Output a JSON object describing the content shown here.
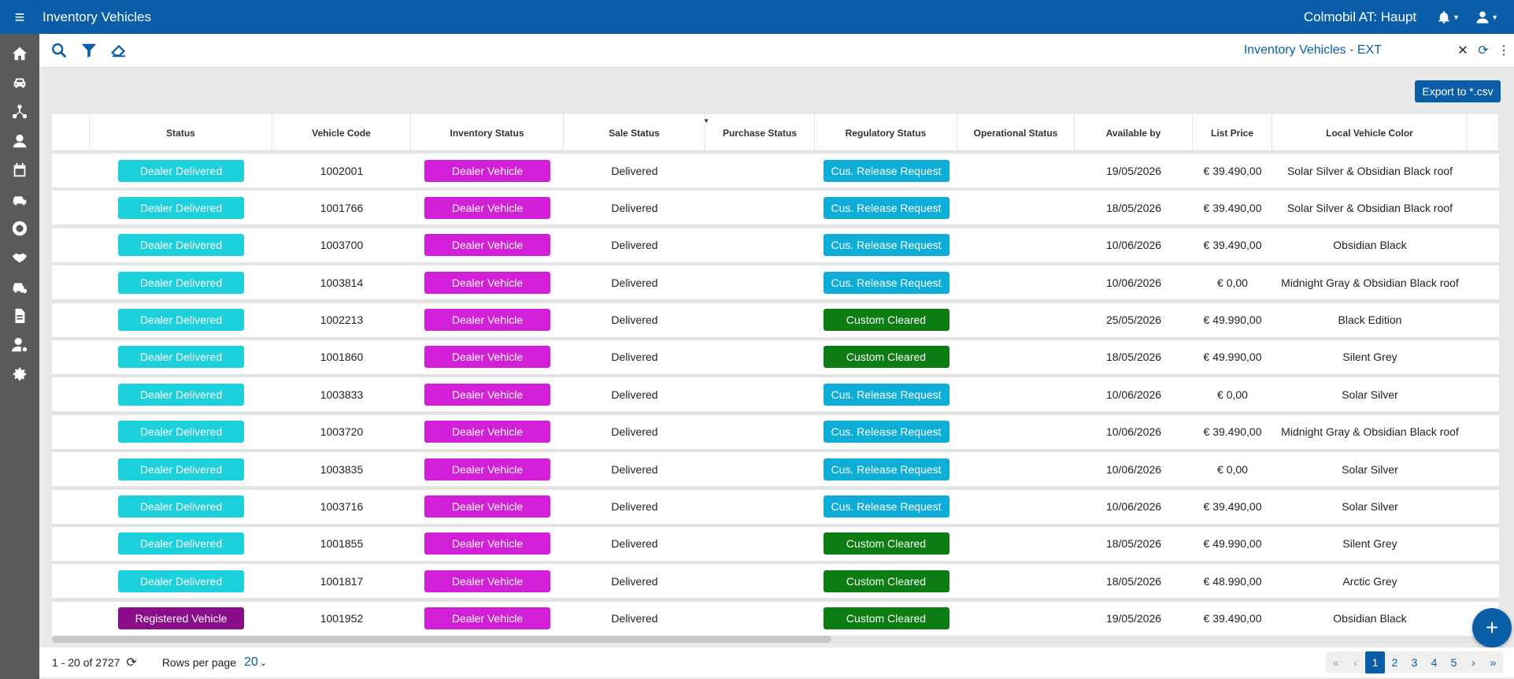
{
  "header": {
    "title": "Inventory Vehicles",
    "organization": "Colmobil AT: Haupt"
  },
  "rail": [
    "home-icon",
    "car-icon",
    "network-icon",
    "customer-icon",
    "calendar-icon",
    "car-speed-icon",
    "service-icon",
    "handshake-icon",
    "car-settings-icon",
    "document-icon",
    "user-settings-icon",
    "gear-icon"
  ],
  "toolbar": {
    "view_name": "Inventory Vehicles - EXT"
  },
  "export_label": "Export to *.csv",
  "columns": [
    "Status",
    "Vehicle Code",
    "Inventory Status",
    "Sale Status",
    "Purchase Status",
    "Regulatory Status",
    "Operational Status",
    "Available by",
    "List Price",
    "Local Vehicle Color"
  ],
  "colors": {
    "dealer_delivered": "#1cd0dc",
    "registered_vehicle": "#8a0d8a",
    "dealer_vehicle": "#d21fd8",
    "cus_release": "#0eaed8",
    "custom_cleared": "#0b7d12"
  },
  "rows": [
    {
      "status": "Dealer Delivered",
      "status_key": "dealer_delivered",
      "code": "1002001",
      "inventory": "Dealer Vehicle",
      "sale": "Delivered",
      "purchase": "",
      "regulatory": "Cus. Release Request",
      "reg_key": "cus_release",
      "operational": "",
      "available": "19/05/2026",
      "price": "€ 39.490,00",
      "color": "Solar Silver & Obsidian Black roof"
    },
    {
      "status": "Dealer Delivered",
      "status_key": "dealer_delivered",
      "code": "1001766",
      "inventory": "Dealer Vehicle",
      "sale": "Delivered",
      "purchase": "",
      "regulatory": "Cus. Release Request",
      "reg_key": "cus_release",
      "operational": "",
      "available": "18/05/2026",
      "price": "€ 39.490,00",
      "color": "Solar Silver & Obsidian Black roof"
    },
    {
      "status": "Dealer Delivered",
      "status_key": "dealer_delivered",
      "code": "1003700",
      "inventory": "Dealer Vehicle",
      "sale": "Delivered",
      "purchase": "",
      "regulatory": "Cus. Release Request",
      "reg_key": "cus_release",
      "operational": "",
      "available": "10/06/2026",
      "price": "€ 39.490,00",
      "color": "Obsidian Black"
    },
    {
      "status": "Dealer Delivered",
      "status_key": "dealer_delivered",
      "code": "1003814",
      "inventory": "Dealer Vehicle",
      "sale": "Delivered",
      "purchase": "",
      "regulatory": "Cus. Release Request",
      "reg_key": "cus_release",
      "operational": "",
      "available": "10/06/2026",
      "price": "€ 0,00",
      "color": "Midnight Gray & Obsidian Black roof"
    },
    {
      "status": "Dealer Delivered",
      "status_key": "dealer_delivered",
      "code": "1002213",
      "inventory": "Dealer Vehicle",
      "sale": "Delivered",
      "purchase": "",
      "regulatory": "Custom Cleared",
      "reg_key": "custom_cleared",
      "operational": "",
      "available": "25/05/2026",
      "price": "€ 49.990,00",
      "color": "Black Edition"
    },
    {
      "status": "Dealer Delivered",
      "status_key": "dealer_delivered",
      "code": "1001860",
      "inventory": "Dealer Vehicle",
      "sale": "Delivered",
      "purchase": "",
      "regulatory": "Custom Cleared",
      "reg_key": "custom_cleared",
      "operational": "",
      "available": "18/05/2026",
      "price": "€ 49.990,00",
      "color": "Silent Grey"
    },
    {
      "status": "Dealer Delivered",
      "status_key": "dealer_delivered",
      "code": "1003833",
      "inventory": "Dealer Vehicle",
      "sale": "Delivered",
      "purchase": "",
      "regulatory": "Cus. Release Request",
      "reg_key": "cus_release",
      "operational": "",
      "available": "10/06/2026",
      "price": "€ 0,00",
      "color": "Solar Silver"
    },
    {
      "status": "Dealer Delivered",
      "status_key": "dealer_delivered",
      "code": "1003720",
      "inventory": "Dealer Vehicle",
      "sale": "Delivered",
      "purchase": "",
      "regulatory": "Cus. Release Request",
      "reg_key": "cus_release",
      "operational": "",
      "available": "10/06/2026",
      "price": "€ 39.490,00",
      "color": "Midnight Gray & Obsidian Black roof"
    },
    {
      "status": "Dealer Delivered",
      "status_key": "dealer_delivered",
      "code": "1003835",
      "inventory": "Dealer Vehicle",
      "sale": "Delivered",
      "purchase": "",
      "regulatory": "Cus. Release Request",
      "reg_key": "cus_release",
      "operational": "",
      "available": "10/06/2026",
      "price": "€ 0,00",
      "color": "Solar Silver"
    },
    {
      "status": "Dealer Delivered",
      "status_key": "dealer_delivered",
      "code": "1003716",
      "inventory": "Dealer Vehicle",
      "sale": "Delivered",
      "purchase": "",
      "regulatory": "Cus. Release Request",
      "reg_key": "cus_release",
      "operational": "",
      "available": "10/06/2026",
      "price": "€ 39.490,00",
      "color": "Solar Silver"
    },
    {
      "status": "Dealer Delivered",
      "status_key": "dealer_delivered",
      "code": "1001855",
      "inventory": "Dealer Vehicle",
      "sale": "Delivered",
      "purchase": "",
      "regulatory": "Custom Cleared",
      "reg_key": "custom_cleared",
      "operational": "",
      "available": "18/05/2026",
      "price": "€ 49.990,00",
      "color": "Silent Grey"
    },
    {
      "status": "Dealer Delivered",
      "status_key": "dealer_delivered",
      "code": "1001817",
      "inventory": "Dealer Vehicle",
      "sale": "Delivered",
      "purchase": "",
      "regulatory": "Custom Cleared",
      "reg_key": "custom_cleared",
      "operational": "",
      "available": "18/05/2026",
      "price": "€ 48.990,00",
      "color": "Arctic Grey"
    },
    {
      "status": "Registered Vehicle",
      "status_key": "registered_vehicle",
      "code": "1001952",
      "inventory": "Dealer Vehicle",
      "sale": "Delivered",
      "purchase": "",
      "regulatory": "Custom Cleared",
      "reg_key": "custom_cleared",
      "operational": "",
      "available": "19/05/2026",
      "price": "€ 39.490,00",
      "color": "Obsidian Black"
    }
  ],
  "footer": {
    "range": "1 - 20 of 2727",
    "rows_per_page_label": "Rows per page",
    "rows_per_page": "20",
    "pages": [
      "1",
      "2",
      "3",
      "4",
      "5"
    ],
    "current_page": "1",
    "first": "«",
    "prev": "‹",
    "next": "›",
    "last": "»"
  }
}
